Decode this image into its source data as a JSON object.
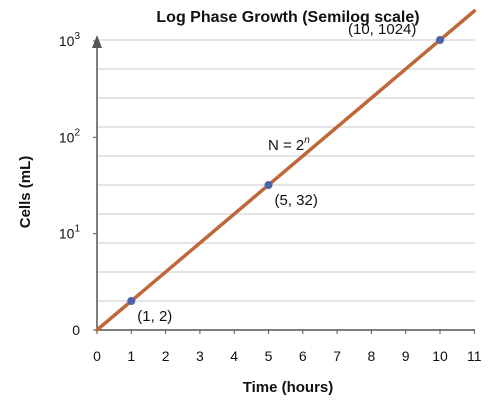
{
  "chart_data": {
    "type": "line",
    "title": "Log Phase Growth (Semilog scale)",
    "xlabel": "Time (hours)",
    "ylabel": "Cells (mL)",
    "y_scale": "log2",
    "xlim": [
      0,
      11
    ],
    "x_ticks": [
      "0",
      "1",
      "2",
      "3",
      "4",
      "5",
      "6",
      "7",
      "8",
      "9",
      "10",
      "11"
    ],
    "y_ticks": [
      {
        "base": "0",
        "exp": "",
        "value": 1
      },
      {
        "base": "10",
        "exp": "1",
        "value": 10
      },
      {
        "base": "10",
        "exp": "2",
        "value": 100
      },
      {
        "base": "10",
        "exp": "3",
        "value": 1000
      }
    ],
    "equation": {
      "lhs": "N = 2",
      "exp": "n"
    },
    "series": [
      {
        "x": [
          0,
          11
        ],
        "y": [
          1,
          2048
        ]
      }
    ],
    "points": [
      {
        "x": 1,
        "y": 2,
        "label": "(1, 2)"
      },
      {
        "x": 5,
        "y": 32,
        "label": "(5, 32)"
      },
      {
        "x": 10,
        "y": 1024,
        "label": "(10, 1024)"
      }
    ],
    "grid": true
  },
  "colors": {
    "line": "#c0673a",
    "points": "#4f63a8",
    "grid": "#c8c8c8",
    "axis": "#555555"
  }
}
